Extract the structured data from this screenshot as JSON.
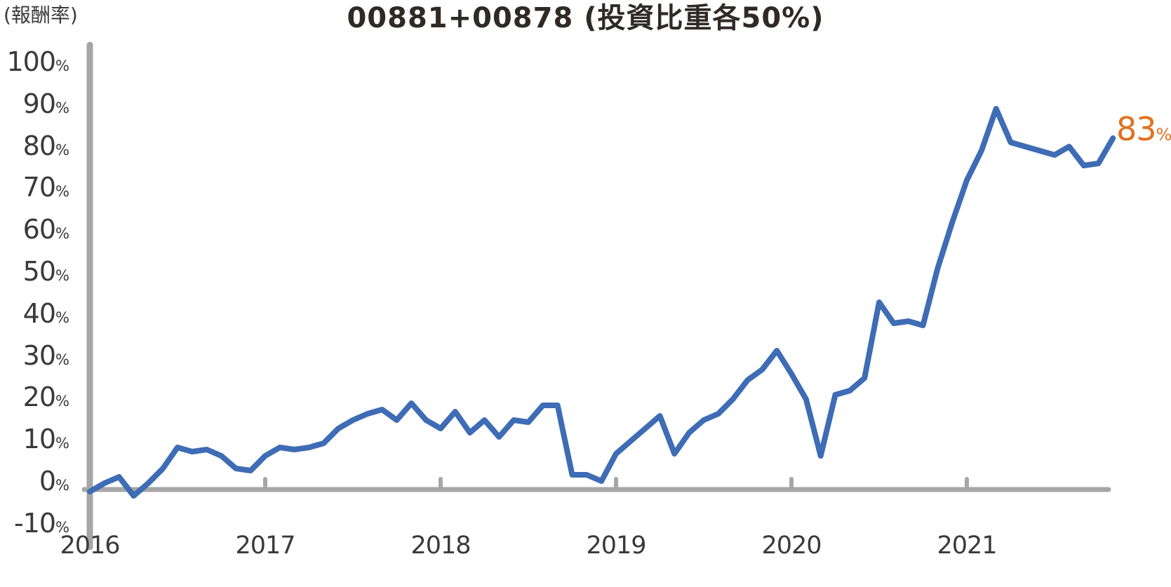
{
  "title": "00881+00878 (投資比重各50%)",
  "y_axis_unit": "(報酬率)",
  "end_label": {
    "number": "83",
    "suffix": "%"
  },
  "colors": {
    "line": "#3E6CB5",
    "axis": "#A6A6A6",
    "text": "#3A3A3A",
    "title": "#2F2A27",
    "accent": "#E2701E"
  },
  "y_axis": {
    "ticks": [
      {
        "num": "100",
        "suffix": "%"
      },
      {
        "num": "90",
        "suffix": "%"
      },
      {
        "num": "80",
        "suffix": "%"
      },
      {
        "num": "70",
        "suffix": "%"
      },
      {
        "num": "60",
        "suffix": "%"
      },
      {
        "num": "50",
        "suffix": "%"
      },
      {
        "num": "40",
        "suffix": "%"
      },
      {
        "num": "30",
        "suffix": "%"
      },
      {
        "num": "20",
        "suffix": "%"
      },
      {
        "num": "10",
        "suffix": "%"
      },
      {
        "num": "0",
        "suffix": "%"
      },
      {
        "num": "-10",
        "suffix": "%"
      }
    ]
  },
  "x_axis": {
    "labels": [
      "2016",
      "2017",
      "2018",
      "2019",
      "2020",
      "2021"
    ]
  },
  "chart_data": {
    "type": "line",
    "title": "00881+00878 (投資比重各50%)",
    "ylabel": "(報酬率)",
    "unit": "%",
    "ylim": [
      -10,
      100
    ],
    "y_tick_values": [
      100,
      90,
      80,
      70,
      60,
      50,
      40,
      30,
      20,
      10,
      0,
      -10
    ],
    "x_tick_labels": [
      "2016",
      "2017",
      "2018",
      "2019",
      "2020",
      "2021"
    ],
    "grid": false,
    "legend_position": "none",
    "end_annotation": {
      "text": "83%",
      "value": 83
    },
    "series": [
      {
        "name": "00881+00878 (投資比重各50%)",
        "frequency": "monthly",
        "months": [
          "2016-01",
          "2016-02",
          "2016-03",
          "2016-04",
          "2016-05",
          "2016-06",
          "2016-07",
          "2016-08",
          "2016-09",
          "2016-10",
          "2016-11",
          "2016-12",
          "2017-01",
          "2017-02",
          "2017-03",
          "2017-04",
          "2017-05",
          "2017-06",
          "2017-07",
          "2017-08",
          "2017-09",
          "2017-10",
          "2017-11",
          "2017-12",
          "2018-01",
          "2018-02",
          "2018-03",
          "2018-04",
          "2018-05",
          "2018-06",
          "2018-07",
          "2018-08",
          "2018-09",
          "2018-10",
          "2018-11",
          "2018-12",
          "2019-01",
          "2019-02",
          "2019-03",
          "2019-04",
          "2019-05",
          "2019-06",
          "2019-07",
          "2019-08",
          "2019-09",
          "2019-10",
          "2019-11",
          "2019-12",
          "2020-01",
          "2020-02",
          "2020-03",
          "2020-04",
          "2020-05",
          "2020-06",
          "2020-07",
          "2020-08",
          "2020-09",
          "2020-10",
          "2020-11",
          "2020-12",
          "2021-01",
          "2021-02",
          "2021-03",
          "2021-04",
          "2021-05",
          "2021-06",
          "2021-07",
          "2021-08",
          "2021-09",
          "2021-10",
          "2021-11"
        ],
        "values": [
          -1,
          1,
          2.5,
          -2,
          1,
          4.5,
          9.5,
          8.5,
          9,
          7.5,
          4.5,
          4,
          7.5,
          9.5,
          9,
          9.5,
          10.5,
          14,
          16,
          17.5,
          18.5,
          16,
          20,
          16,
          14,
          18,
          13,
          16,
          12,
          16,
          15.5,
          19.5,
          19.5,
          3,
          3,
          1.5,
          8,
          11,
          14,
          17,
          8,
          13,
          16,
          17.5,
          21,
          25.5,
          28,
          32.5,
          27,
          21,
          7.5,
          22,
          23,
          26,
          44,
          39,
          39.5,
          38.5,
          52,
          63,
          73,
          80,
          90,
          82,
          81,
          80,
          79,
          81,
          76.5,
          77,
          83
        ]
      }
    ]
  }
}
